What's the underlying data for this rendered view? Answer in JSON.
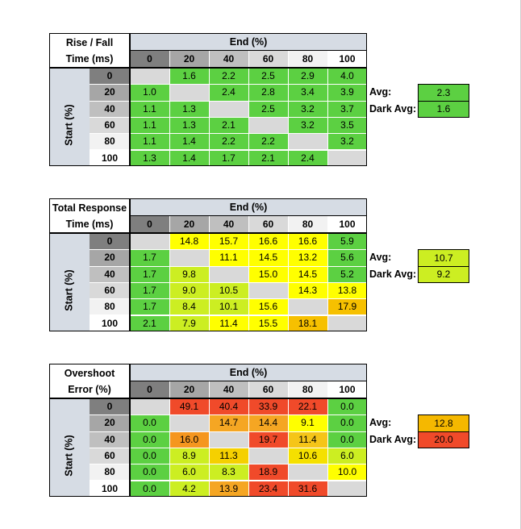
{
  "chart_data": [
    {
      "type": "table",
      "title_line1": "Rise / Fall",
      "title_line2": "Time (ms)",
      "column_header": "End (%)",
      "row_header": "Start (%)",
      "columns": [
        "0",
        "20",
        "40",
        "60",
        "80",
        "100"
      ],
      "rows": [
        "0",
        "20",
        "40",
        "60",
        "80",
        "100"
      ],
      "values": [
        [
          "",
          "1.6",
          "2.2",
          "2.5",
          "2.9",
          "4.0"
        ],
        [
          "1.0",
          "",
          "2.4",
          "2.8",
          "3.4",
          "3.9"
        ],
        [
          "1.1",
          "1.3",
          "",
          "2.5",
          "3.2",
          "3.7"
        ],
        [
          "1.1",
          "1.3",
          "2.1",
          "",
          "3.2",
          "3.5"
        ],
        [
          "1.1",
          "1.4",
          "2.2",
          "2.2",
          "",
          "3.2"
        ],
        [
          "1.3",
          "1.4",
          "1.7",
          "2.1",
          "2.4",
          ""
        ]
      ],
      "colors": [
        [
          "#d9d9d9",
          "#5cd042",
          "#5cd042",
          "#5cd042",
          "#5cd042",
          "#5cd042"
        ],
        [
          "#5cd042",
          "#d9d9d9",
          "#5cd042",
          "#5cd042",
          "#5cd042",
          "#5cd042"
        ],
        [
          "#5cd042",
          "#5cd042",
          "#d9d9d9",
          "#5cd042",
          "#5cd042",
          "#5cd042"
        ],
        [
          "#5cd042",
          "#5cd042",
          "#5cd042",
          "#d9d9d9",
          "#5cd042",
          "#5cd042"
        ],
        [
          "#5cd042",
          "#5cd042",
          "#5cd042",
          "#5cd042",
          "#d9d9d9",
          "#5cd042"
        ],
        [
          "#5cd042",
          "#5cd042",
          "#5cd042",
          "#5cd042",
          "#5cd042",
          "#d9d9d9"
        ]
      ],
      "avg_label": "Avg:",
      "avg_value": "2.3",
      "avg_color": "#5cd042",
      "dark_avg_label": "Dark Avg:",
      "dark_avg_value": "1.6",
      "dark_avg_color": "#5cd042"
    },
    {
      "type": "table",
      "title_line1": "Total Response",
      "title_line2": "Time (ms)",
      "column_header": "End (%)",
      "row_header": "Start (%)",
      "columns": [
        "0",
        "20",
        "40",
        "60",
        "80",
        "100"
      ],
      "rows": [
        "0",
        "20",
        "40",
        "60",
        "80",
        "100"
      ],
      "values": [
        [
          "",
          "14.8",
          "15.7",
          "16.6",
          "16.6",
          "5.9"
        ],
        [
          "1.7",
          "",
          "11.1",
          "14.5",
          "13.2",
          "5.6"
        ],
        [
          "1.7",
          "9.8",
          "",
          "15.0",
          "14.5",
          "5.2"
        ],
        [
          "1.7",
          "9.0",
          "10.5",
          "",
          "14.3",
          "13.8"
        ],
        [
          "1.7",
          "8.4",
          "10.1",
          "15.6",
          "",
          "17.9"
        ],
        [
          "2.1",
          "7.9",
          "11.4",
          "15.5",
          "18.1",
          ""
        ]
      ],
      "colors": [
        [
          "#d9d9d9",
          "#ffff00",
          "#ffff00",
          "#ffff00",
          "#ffff00",
          "#5cd042"
        ],
        [
          "#5cd042",
          "#d9d9d9",
          "#ffff00",
          "#ffff00",
          "#ffff00",
          "#5cd042"
        ],
        [
          "#5cd042",
          "#ccee22",
          "#d9d9d9",
          "#ffff00",
          "#ffff00",
          "#5cd042"
        ],
        [
          "#5cd042",
          "#ccee22",
          "#ccee22",
          "#d9d9d9",
          "#ffff00",
          "#ffff00"
        ],
        [
          "#5cd042",
          "#ccee22",
          "#ccee22",
          "#ffff00",
          "#d9d9d9",
          "#f6c000"
        ],
        [
          "#5cd042",
          "#ccee22",
          "#ffff00",
          "#ffff00",
          "#f6c000",
          "#d9d9d9"
        ]
      ],
      "avg_label": "Avg:",
      "avg_value": "10.7",
      "avg_color": "#ccee22",
      "dark_avg_label": "Dark Avg:",
      "dark_avg_value": "9.2",
      "dark_avg_color": "#ccee22"
    },
    {
      "type": "table",
      "title_line1": "Overshoot",
      "title_line2": "Error (%)",
      "column_header": "End (%)",
      "row_header": "Start (%)",
      "columns": [
        "0",
        "20",
        "40",
        "60",
        "80",
        "100"
      ],
      "rows": [
        "0",
        "20",
        "40",
        "60",
        "80",
        "100"
      ],
      "values": [
        [
          "",
          "49.1",
          "40.4",
          "33.9",
          "22.1",
          "0.0"
        ],
        [
          "0.0",
          "",
          "14.7",
          "14.4",
          "9.1",
          "0.0"
        ],
        [
          "0.0",
          "16.0",
          "",
          "19.7",
          "11.4",
          "0.0"
        ],
        [
          "0.0",
          "8.9",
          "11.3",
          "",
          "10.6",
          "6.0"
        ],
        [
          "0.0",
          "6.0",
          "8.3",
          "18.9",
          "",
          "10.0"
        ],
        [
          "0.0",
          "4.2",
          "13.9",
          "23.4",
          "31.6",
          ""
        ]
      ],
      "colors": [
        [
          "#d9d9d9",
          "#f04a2a",
          "#f04a2a",
          "#f04a2a",
          "#f04a2a",
          "#5cd042"
        ],
        [
          "#5cd042",
          "#d9d9d9",
          "#f5a623",
          "#f5a623",
          "#ffff00",
          "#5cd042"
        ],
        [
          "#5cd042",
          "#f5961f",
          "#d9d9d9",
          "#f04a2a",
          "#f5c518",
          "#5cd042"
        ],
        [
          "#5cd042",
          "#ccee22",
          "#f5d000",
          "#d9d9d9",
          "#f5e000",
          "#ccee22"
        ],
        [
          "#5cd042",
          "#ccee22",
          "#ccee22",
          "#f04a2a",
          "#d9d9d9",
          "#ffff00"
        ],
        [
          "#5cd042",
          "#ccee22",
          "#f5a623",
          "#f04a2a",
          "#f04a2a",
          "#d9d9d9"
        ]
      ],
      "avg_label": "Avg:",
      "avg_value": "12.8",
      "avg_color": "#f5b800",
      "dark_avg_label": "Dark Avg:",
      "dark_avg_value": "20.0",
      "dark_avg_color": "#f04a2a"
    }
  ],
  "header_colors": [
    "#7f7f7f",
    "#a6a6a6",
    "#bfbfbf",
    "#d9d9d9",
    "#f2f2f2",
    "#ffffff"
  ]
}
